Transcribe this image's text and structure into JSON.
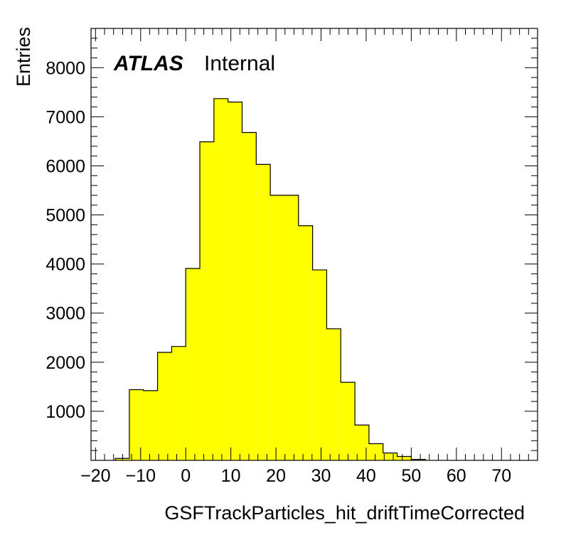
{
  "chart_data": {
    "type": "bar",
    "subtype": "histogram",
    "xlabel": "GSFTrackParticles_hit_driftTimeCorrected",
    "ylabel": "Entries",
    "annotation": {
      "experiment": "ATLAS",
      "status": "Internal"
    },
    "xlim": [
      -21,
      78
    ],
    "ylim": [
      0,
      8800
    ],
    "xticks": [
      -20,
      -10,
      0,
      10,
      20,
      30,
      40,
      50,
      60,
      70
    ],
    "xtick_labels": [
      "−20",
      "−10",
      "0",
      "10",
      "20",
      "30",
      "40",
      "50",
      "60",
      "70"
    ],
    "yticks": [
      1000,
      2000,
      3000,
      4000,
      5000,
      6000,
      7000,
      8000
    ],
    "ytick_labels": [
      "1000",
      "2000",
      "3000",
      "4000",
      "5000",
      "6000",
      "7000",
      "8000"
    ],
    "bin_width": 3.125,
    "bin_edges": [
      -15.625,
      -12.5,
      -9.375,
      -6.25,
      -3.125,
      0,
      3.125,
      6.25,
      9.375,
      12.5,
      15.625,
      18.75,
      21.875,
      25,
      28.125,
      31.25,
      34.375,
      37.5,
      40.625,
      43.75,
      46.875,
      50,
      53.125
    ],
    "values": [
      40,
      1440,
      1420,
      2200,
      2320,
      3910,
      6490,
      7370,
      7300,
      6680,
      6030,
      5400,
      5400,
      4780,
      3880,
      2680,
      1590,
      720,
      340,
      150,
      80,
      20
    ],
    "fill_color": "#ffff00",
    "edge_color": "#000000",
    "grid": false,
    "legend": "none"
  }
}
